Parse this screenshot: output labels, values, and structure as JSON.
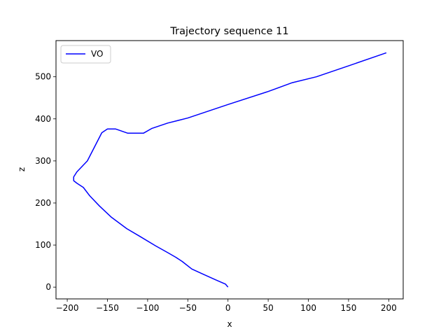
{
  "chart_data": {
    "type": "line",
    "title": "Trajectory sequence 11",
    "xlabel": "x",
    "ylabel": "z",
    "xlim": [
      -214,
      218
    ],
    "ylim": [
      -28,
      586
    ],
    "xticks": [
      -200,
      -150,
      -100,
      -50,
      0,
      50,
      100,
      150,
      200
    ],
    "yticks": [
      0,
      100,
      200,
      300,
      400,
      500
    ],
    "grid": false,
    "legend": {
      "placement": "upper-left",
      "entries": [
        "VO"
      ]
    },
    "series": [
      {
        "name": "VO",
        "color": "#0000ff",
        "points": [
          [
            0,
            0
          ],
          [
            -3,
            7
          ],
          [
            -15,
            17
          ],
          [
            -30,
            30
          ],
          [
            -45,
            43
          ],
          [
            -57,
            61
          ],
          [
            -65,
            71
          ],
          [
            -75,
            82
          ],
          [
            -90,
            98
          ],
          [
            -110,
            121
          ],
          [
            -126,
            139
          ],
          [
            -145,
            166
          ],
          [
            -160,
            193
          ],
          [
            -172,
            217
          ],
          [
            -180,
            237
          ],
          [
            -188,
            247
          ],
          [
            -192,
            253
          ],
          [
            -192,
            262
          ],
          [
            -188,
            274
          ],
          [
            -175,
            300
          ],
          [
            -157,
            367
          ],
          [
            -150,
            376
          ],
          [
            -140,
            376
          ],
          [
            -125,
            366
          ],
          [
            -105,
            366
          ],
          [
            -95,
            377
          ],
          [
            -75,
            390
          ],
          [
            -50,
            402
          ],
          [
            0,
            434
          ],
          [
            50,
            465
          ],
          [
            80,
            486
          ],
          [
            110,
            500
          ],
          [
            150,
            526
          ],
          [
            197,
            557
          ]
        ]
      }
    ]
  }
}
